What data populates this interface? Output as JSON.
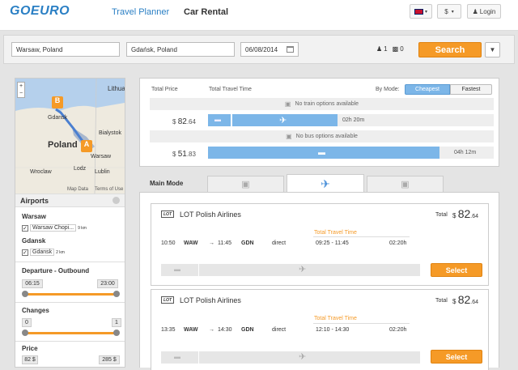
{
  "header": {
    "logo": "GOEURO",
    "nav_planner": "Travel Planner",
    "nav_car": "Car Rental",
    "currency": "$",
    "login": "Login"
  },
  "search": {
    "from": "Warsaw, Poland",
    "to": "Gdańsk, Poland",
    "date": "06/08/2014",
    "passengers": "1",
    "bikes": "0",
    "button": "Search"
  },
  "map": {
    "labels": [
      "Lithuan",
      "Gdansk",
      "Poland",
      "Warsaw",
      "Bialystok",
      "Wroclaw",
      "Lodz",
      "Lublin",
      "Map Data",
      "Terms of Use"
    ],
    "marker_a": "A",
    "marker_b": "B"
  },
  "filters": {
    "airports_title": "Airports",
    "warsaw": "Warsaw",
    "warsaw_airport": "Warsaw Chopi...",
    "warsaw_dist": "9 km",
    "gdansk": "Gdansk",
    "gdansk_airport": "Gdansk",
    "gdansk_dist": "2 km",
    "departure_title": "Departure - Outbound",
    "dep_min": "06:15",
    "dep_max": "23:00",
    "changes_title": "Changes",
    "ch_min": "0",
    "ch_max": "1",
    "price_title": "Price",
    "pr_min": "82 $",
    "pr_max": "285 $"
  },
  "summary": {
    "total_price": "Total Price",
    "total_time": "Total Travel Time",
    "by_mode": "By Mode:",
    "cheapest": "Cheapest",
    "fastest": "Fastest",
    "no_train": "No train options available",
    "flight_price_cur": "$",
    "flight_price": "82",
    "flight_price_dec": ".64",
    "flight_time": "02h 20m",
    "no_bus": "No bus options available",
    "car_price_cur": "$",
    "car_price": "51",
    "car_price_dec": ".83",
    "car_time": "04h 12m"
  },
  "main_mode": "Main Mode",
  "results": [
    {
      "airline": "LOT Polish Airlines",
      "total_label": "Total",
      "cur": "$",
      "price": "82",
      "dec": ".64",
      "ttt": "Total Travel Time",
      "dep": "10:50",
      "from": "WAW",
      "arr": "11:45",
      "to": "GDN",
      "type": "direct",
      "range": "09:25 - 11:45",
      "dur": "02:20h",
      "select": "Select"
    },
    {
      "airline": "LOT Polish Airlines",
      "total_label": "Total",
      "cur": "$",
      "price": "82",
      "dec": ".64",
      "ttt": "Total Travel Time",
      "dep": "13:35",
      "from": "WAW",
      "arr": "14:30",
      "to": "GDN",
      "type": "direct",
      "range": "12:10 - 14:30",
      "dur": "02:20h",
      "select": "Select"
    }
  ],
  "colors": {
    "accent": "#f59a27",
    "blue": "#2a7fc4",
    "bar": "#7cb6e8"
  }
}
